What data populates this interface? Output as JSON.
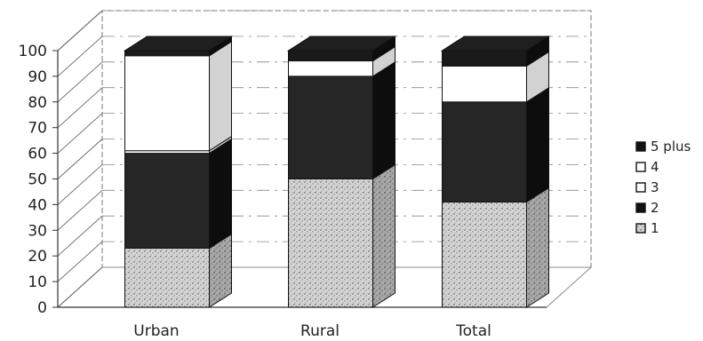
{
  "chart_data": {
    "type": "bar",
    "stacked": true,
    "three_d": true,
    "categories": [
      "Urban",
      "Rural",
      "Total"
    ],
    "series": [
      {
        "name": "1",
        "values": [
          23,
          50,
          41
        ]
      },
      {
        "name": "2",
        "values": [
          37,
          40,
          39
        ]
      },
      {
        "name": "3",
        "values": [
          1,
          0,
          0
        ]
      },
      {
        "name": "4",
        "values": [
          37,
          6,
          14
        ]
      },
      {
        "name": "5 plus",
        "values": [
          2,
          4,
          6
        ]
      }
    ],
    "yticks": [
      "0",
      "10",
      "20",
      "30",
      "40",
      "50",
      "60",
      "70",
      "80",
      "90",
      "100"
    ],
    "ylim": [
      0,
      100
    ],
    "legend_position": "right",
    "colors": {
      "1": "#d9d9d9",
      "2": "#262626",
      "3": "#ffffff",
      "4": "#ffffff",
      "5 plus": "#1a1a1a",
      "edge": "#111111",
      "axis": "#333333"
    }
  }
}
